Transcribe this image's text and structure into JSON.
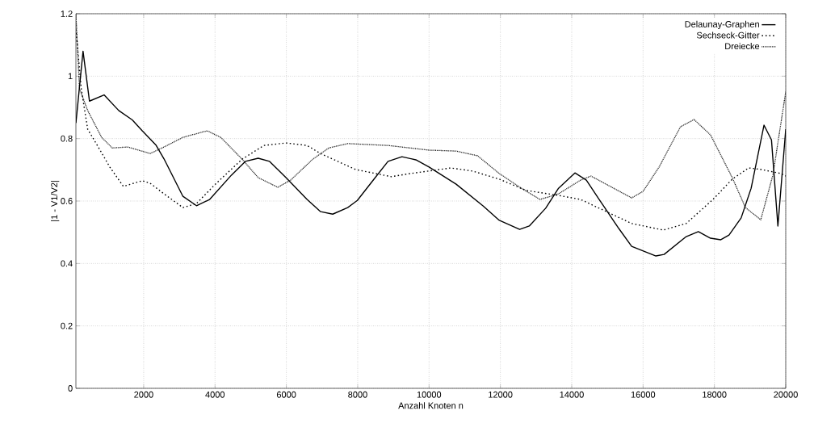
{
  "chart_data": {
    "type": "line",
    "xlabel": "Anzahl Knoten n",
    "ylabel": "|1 - V1/V2|",
    "xlim": [
      100,
      20000
    ],
    "ylim": [
      0,
      1.2
    ],
    "xticks": [
      2000,
      4000,
      6000,
      8000,
      10000,
      12000,
      14000,
      16000,
      18000,
      20000
    ],
    "yticks": [
      0,
      0.2,
      0.4,
      0.6,
      0.8,
      1,
      1.2
    ],
    "grid": true,
    "legend": "top right",
    "marker": "none",
    "series": [
      {
        "name": "Delaunay-Graphen",
        "color": "#000000",
        "line_style": "solid",
        "x": [
          100,
          300,
          480,
          890,
          1300,
          1680,
          1960,
          2340,
          2570,
          3100,
          3480,
          3850,
          4460,
          4850,
          5210,
          5530,
          5990,
          6580,
          6960,
          7300,
          7720,
          7990,
          8490,
          8850,
          9240,
          9630,
          10000,
          10760,
          11520,
          11970,
          12540,
          12810,
          13270,
          13630,
          14090,
          14410,
          14770,
          15320,
          15680,
          16360,
          16590,
          17210,
          17550,
          17890,
          18180,
          18410,
          18750,
          19030,
          19390,
          19600,
          19780,
          20000
        ],
        "values": [
          0.85,
          1.08,
          0.92,
          0.94,
          0.89,
          0.86,
          0.825,
          0.78,
          0.735,
          0.615,
          0.585,
          0.605,
          0.683,
          0.727,
          0.737,
          0.727,
          0.675,
          0.605,
          0.566,
          0.558,
          0.579,
          0.602,
          0.675,
          0.727,
          0.742,
          0.732,
          0.709,
          0.654,
          0.584,
          0.538,
          0.509,
          0.52,
          0.577,
          0.641,
          0.69,
          0.667,
          0.605,
          0.512,
          0.455,
          0.424,
          0.429,
          0.486,
          0.502,
          0.481,
          0.476,
          0.491,
          0.546,
          0.641,
          0.843,
          0.796,
          0.52,
          0.83
        ]
      },
      {
        "name": "Sechseck-Gitter",
        "color": "#000000",
        "line_style": "dashed",
        "x": [
          100,
          250,
          430,
          660,
          1050,
          1430,
          1960,
          2180,
          2570,
          3100,
          3480,
          4010,
          4760,
          5370,
          5990,
          6580,
          6960,
          7940,
          8940,
          9470,
          10610,
          11220,
          11970,
          12720,
          13630,
          14250,
          14770,
          15680,
          16570,
          17210,
          17960,
          18500,
          18960,
          19320,
          19870,
          20000
        ],
        "values": [
          1.15,
          0.96,
          0.83,
          0.786,
          0.709,
          0.647,
          0.665,
          0.657,
          0.623,
          0.579,
          0.592,
          0.654,
          0.734,
          0.778,
          0.786,
          0.778,
          0.752,
          0.701,
          0.678,
          0.688,
          0.706,
          0.696,
          0.67,
          0.634,
          0.618,
          0.605,
          0.577,
          0.528,
          0.507,
          0.528,
          0.605,
          0.67,
          0.706,
          0.701,
          0.688,
          0.68
        ]
      },
      {
        "name": "Dreiecke",
        "color": "#000000",
        "line_style": "dotted",
        "x": [
          100,
          200,
          430,
          820,
          1120,
          1550,
          2180,
          2570,
          3100,
          3780,
          4160,
          4760,
          5210,
          5760,
          6120,
          6740,
          7190,
          7720,
          8850,
          10000,
          10760,
          11360,
          11970,
          12590,
          13110,
          13630,
          14250,
          14540,
          15680,
          16000,
          16450,
          17050,
          17430,
          17890,
          18500,
          18870,
          19300,
          19640,
          20000
        ],
        "values": [
          1.2,
          0.96,
          0.89,
          0.804,
          0.77,
          0.773,
          0.752,
          0.773,
          0.804,
          0.825,
          0.804,
          0.734,
          0.675,
          0.644,
          0.667,
          0.734,
          0.77,
          0.784,
          0.778,
          0.763,
          0.76,
          0.745,
          0.688,
          0.641,
          0.605,
          0.623,
          0.667,
          0.68,
          0.61,
          0.631,
          0.709,
          0.838,
          0.861,
          0.812,
          0.675,
          0.579,
          0.54,
          0.683,
          0.95
        ]
      }
    ]
  }
}
